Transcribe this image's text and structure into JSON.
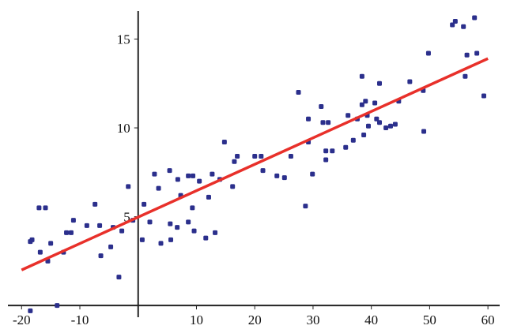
{
  "chart_data": {
    "type": "scatter",
    "xlim": [
      -23.7,
      63.1
    ],
    "ylim": [
      -1.55,
      17.2
    ],
    "xticks": [
      -20,
      -10,
      0,
      10,
      20,
      30,
      40,
      50,
      60
    ],
    "yticks": [
      5,
      10,
      15
    ],
    "series": [
      {
        "color": "#2b2f8c",
        "x": [
          -18.2,
          -18.5,
          -18.5,
          -17,
          -15.9,
          -16.8,
          -15.5,
          -15,
          -13.9,
          -12.8,
          -12.3,
          -11.5,
          -11.1,
          -8.8,
          -7.4,
          -6.6,
          -6.4,
          -4.7,
          -4.3,
          -3.3,
          -2.8,
          -1.7,
          -0.9,
          0.7,
          1.0,
          2.0,
          2.8,
          3.5,
          3.9,
          5.4,
          5.5,
          5.6,
          6.8,
          6.7,
          7.3,
          8.6,
          9.4,
          9.3,
          8.6,
          9.6,
          10.5,
          11.6,
          12.1,
          12.7,
          13.2,
          14,
          14.8,
          16.2,
          16.5,
          17,
          20,
          21.1,
          21.4,
          23.8,
          25.1,
          26.2,
          27.5,
          28.7,
          29.2,
          29.2,
          29.9,
          31.4,
          31.7,
          32.2,
          32.6,
          32.2,
          33.3,
          35.6,
          36,
          36.9,
          37.6,
          38.4,
          38.4,
          39,
          39.3,
          38.7,
          39.5,
          40.6,
          40.9,
          41.4,
          41.4,
          42.5,
          43.3,
          44.1,
          44.7,
          46.6,
          48.9,
          49,
          49.8,
          53.9,
          54.4,
          55.8,
          56.1,
          56.4,
          57.7,
          58.1,
          59.3
        ],
        "values": [
          3.7,
          3.6,
          -0.3,
          5.5,
          5.5,
          3.0,
          2.5,
          3.5,
          0,
          3.0,
          4.1,
          4.1,
          4.8,
          4.5,
          5.7,
          4.5,
          2.8,
          3.3,
          4.4,
          1.6,
          4.2,
          6.7,
          4.8,
          3.7,
          5.7,
          4.7,
          7.4,
          6.6,
          3.5,
          7.6,
          4.6,
          3.7,
          7.1,
          4.4,
          6.2,
          7.3,
          7.3,
          5.5,
          4.7,
          4.2,
          7.0,
          3.8,
          6.1,
          7.4,
          4.1,
          7.1,
          9.2,
          6.7,
          8.1,
          8.4,
          8.4,
          8.4,
          7.6,
          7.3,
          7.2,
          8.4,
          12.0,
          5.6,
          9.2,
          10.5,
          7.4,
          11.2,
          10.3,
          8.7,
          10.3,
          8.2,
          8.7,
          8.9,
          10.7,
          9.3,
          10.5,
          12.9,
          11.3,
          11.5,
          10.7,
          9.6,
          10.1,
          11.4,
          10.5,
          10.3,
          12.5,
          10.0,
          10.1,
          10.2,
          11.5,
          12.6,
          12.1,
          9.8,
          14.2,
          15.8,
          16.0,
          15.7,
          12.9,
          14.1,
          16.2,
          14.2,
          11.8
        ]
      }
    ],
    "fit_line": {
      "color": "#e8302a",
      "x": [
        -20,
        60
      ],
      "values": [
        2.0,
        13.9
      ]
    }
  }
}
